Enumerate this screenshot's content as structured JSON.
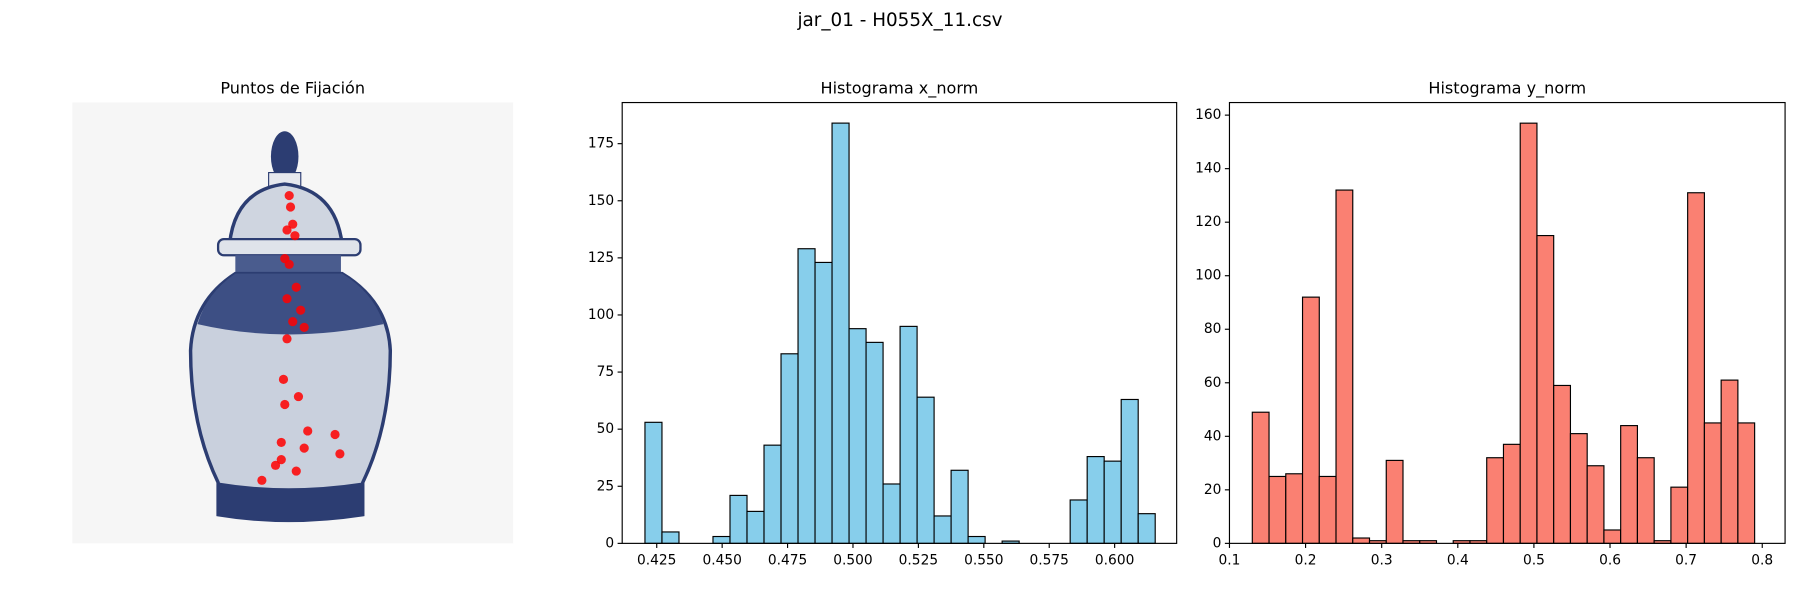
{
  "title": "jar_01 - H055X_11.csv",
  "chart_data": [
    {
      "type": "image",
      "title": "Puntos de Fijación",
      "color": "#ff0000",
      "points": {
        "x": [
          0.492,
          0.495,
          0.5,
          0.487,
          0.505,
          0.482,
          0.492,
          0.508,
          0.487,
          0.518,
          0.5,
          0.526,
          0.487,
          0.479,
          0.482,
          0.513,
          0.474,
          0.534,
          0.596,
          0.607,
          0.526,
          0.461,
          0.43,
          0.508,
          0.474
        ],
        "y": [
          0.211,
          0.237,
          0.276,
          0.289,
          0.302,
          0.354,
          0.367,
          0.419,
          0.445,
          0.471,
          0.497,
          0.51,
          0.536,
          0.628,
          0.685,
          0.667,
          0.771,
          0.745,
          0.753,
          0.797,
          0.784,
          0.823,
          0.857,
          0.836,
          0.81
        ]
      }
    },
    {
      "type": "histogram",
      "title": "Histograma x_norm",
      "color": "#87ceeb",
      "edgecolor": "#000000",
      "bins": [
        0.4205,
        0.427,
        0.4335,
        0.44,
        0.4465,
        0.453,
        0.4595,
        0.466,
        0.4725,
        0.479,
        0.4855,
        0.492,
        0.4985,
        0.505,
        0.5115,
        0.518,
        0.5245,
        0.531,
        0.5375,
        0.544,
        0.5505,
        0.557,
        0.5635,
        0.57,
        0.5765,
        0.583,
        0.5895,
        0.596,
        0.6025,
        0.609,
        0.6155
      ],
      "values": [
        53,
        5,
        0,
        0,
        3,
        21,
        14,
        43,
        83,
        129,
        123,
        184,
        94,
        88,
        26,
        95,
        64,
        12,
        32,
        3,
        0,
        1,
        0,
        0,
        0,
        19,
        38,
        36,
        63,
        13
      ],
      "xlim": [
        0.4118,
        0.6237
      ],
      "xticks": [
        0.425,
        {
          "value": 0.45,
          "label": "0.450"
        },
        0.475,
        {
          "value": 0.5,
          "label": "0.500"
        },
        0.525,
        {
          "value": 0.55,
          "label": "0.550"
        },
        0.575,
        {
          "value": 0.6,
          "label": "0.600"
        }
      ],
      "ylim": [
        0,
        193
      ],
      "yticks": [
        0,
        25,
        50,
        75,
        100,
        125,
        150,
        175
      ]
    },
    {
      "type": "histogram",
      "title": "Histograma y_norm",
      "color": "#fa8072",
      "edgecolor": "#000000",
      "bins": [
        0.13,
        0.152,
        0.174,
        0.196,
        0.218,
        0.24,
        0.262,
        0.284,
        0.306,
        0.328,
        0.35,
        0.372,
        0.394,
        0.416,
        0.438,
        0.46,
        0.482,
        0.504,
        0.526,
        0.548,
        0.57,
        0.592,
        0.614,
        0.636,
        0.658,
        0.68,
        0.702,
        0.724,
        0.746,
        0.768,
        0.79
      ],
      "values": [
        49,
        25,
        26,
        92,
        25,
        132,
        2,
        1,
        31,
        1,
        1,
        0,
        1,
        1,
        32,
        37,
        157,
        115,
        59,
        41,
        29,
        5,
        44,
        32,
        1,
        21,
        131,
        45,
        61,
        45
      ],
      "xlim": [
        0.1,
        0.83
      ],
      "xticks": [
        0.1,
        0.2,
        0.3,
        0.4,
        0.5,
        0.6,
        0.7,
        0.8
      ],
      "ylim": [
        0,
        164.7
      ],
      "yticks": [
        0,
        20,
        40,
        60,
        80,
        100,
        120,
        140,
        160
      ]
    }
  ]
}
